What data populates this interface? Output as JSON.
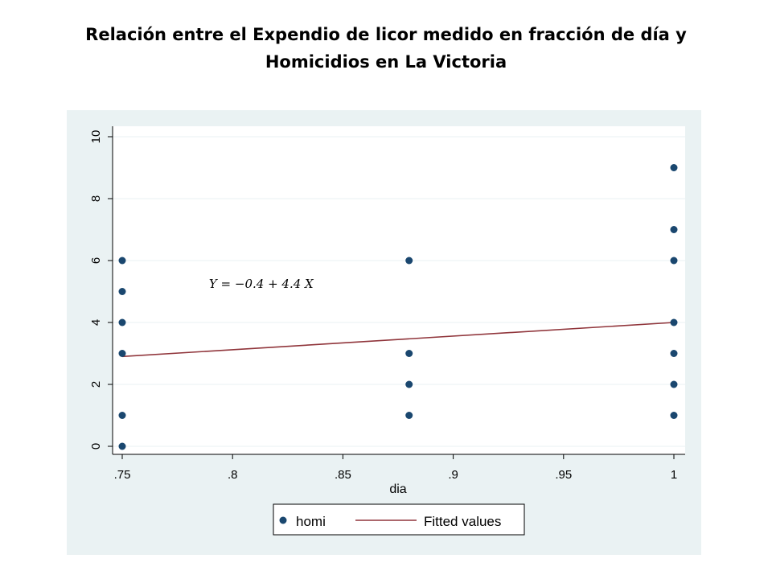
{
  "title_line1": "Relación entre el Expendio de licor medido en fracción de día y",
  "title_line2": "Homicidios en La Victoria",
  "chart_data": {
    "type": "scatter",
    "xlabel": "dia",
    "ylabel": "",
    "xlim": [
      0.75,
      1.0
    ],
    "ylim": [
      0,
      10
    ],
    "x_ticks": [
      0.75,
      0.8,
      0.85,
      0.9,
      0.95,
      1.0
    ],
    "x_tick_labels": [
      ".75",
      ".8",
      ".85",
      ".9",
      ".95",
      "1"
    ],
    "y_ticks": [
      0,
      2,
      4,
      6,
      8,
      10
    ],
    "y_tick_labels": [
      "0",
      "2",
      "4",
      "6",
      "8",
      "10"
    ],
    "grid": "horizontal",
    "series": [
      {
        "name": "homi",
        "kind": "scatter",
        "color": "#1a476f",
        "points": [
          {
            "x": 0.75,
            "y": 0
          },
          {
            "x": 0.75,
            "y": 1
          },
          {
            "x": 0.75,
            "y": 3
          },
          {
            "x": 0.75,
            "y": 4
          },
          {
            "x": 0.75,
            "y": 5
          },
          {
            "x": 0.75,
            "y": 6
          },
          {
            "x": 0.88,
            "y": 1
          },
          {
            "x": 0.88,
            "y": 2
          },
          {
            "x": 0.88,
            "y": 3
          },
          {
            "x": 0.88,
            "y": 6
          },
          {
            "x": 1.0,
            "y": 1
          },
          {
            "x": 1.0,
            "y": 2
          },
          {
            "x": 1.0,
            "y": 3
          },
          {
            "x": 1.0,
            "y": 4
          },
          {
            "x": 1.0,
            "y": 6
          },
          {
            "x": 1.0,
            "y": 7
          },
          {
            "x": 1.0,
            "y": 9
          }
        ]
      },
      {
        "name": "Fitted values",
        "kind": "line",
        "color": "#90353b",
        "points": [
          {
            "x": 0.75,
            "y": 2.9
          },
          {
            "x": 1.0,
            "y": 4.0
          }
        ]
      }
    ],
    "annotation": {
      "text": "Y = −0.4 + 4.4 X",
      "x": 0.77,
      "y": 5.25
    },
    "legend": {
      "placement": "bottom",
      "entries": [
        "homi",
        "Fitted values"
      ]
    },
    "colors": {
      "plot_region": "#ffffff",
      "graph_region": "#eaf2f3",
      "grid": "#eaf2f3"
    }
  }
}
